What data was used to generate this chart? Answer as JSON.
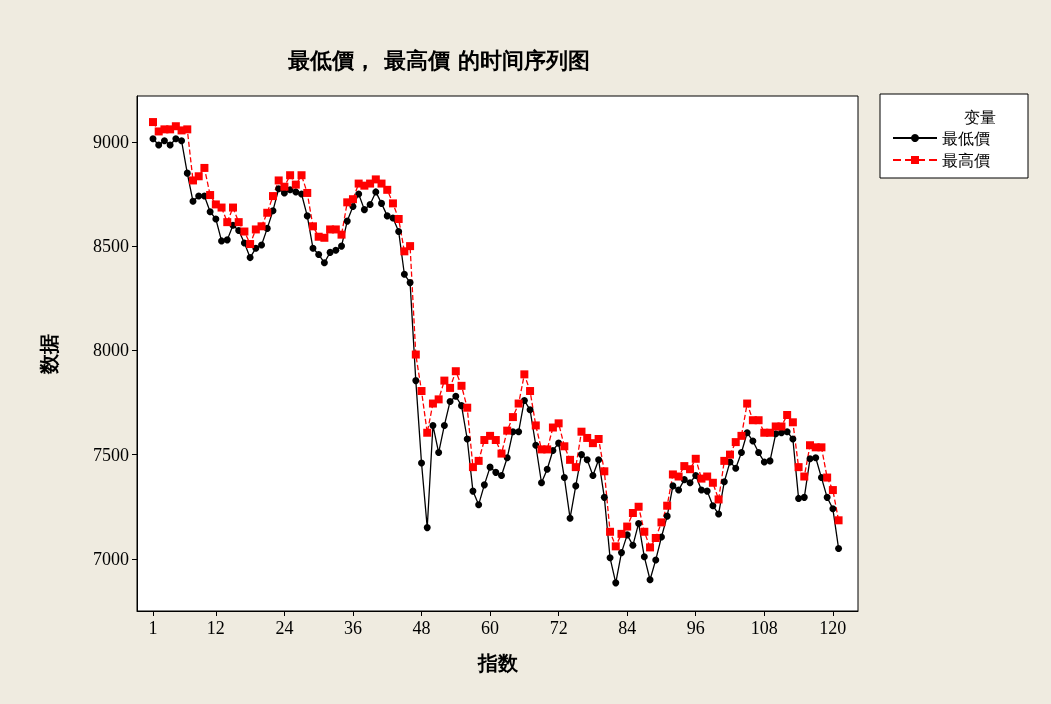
{
  "chart_data": {
    "type": "line",
    "title": "最低價， 最高價 的时间序列图",
    "xlabel": "指数",
    "ylabel": "数据",
    "legend_title": "变量",
    "legend": "right",
    "grid": false,
    "x": [
      1,
      2,
      3,
      4,
      5,
      6,
      7,
      8,
      9,
      10,
      11,
      12,
      13,
      14,
      15,
      16,
      17,
      18,
      19,
      20,
      21,
      22,
      23,
      24,
      25,
      26,
      27,
      28,
      29,
      30,
      31,
      32,
      33,
      34,
      35,
      36,
      37,
      38,
      39,
      40,
      41,
      42,
      43,
      44,
      45,
      46,
      47,
      48,
      49,
      50,
      51,
      52,
      53,
      54,
      55,
      56,
      57,
      58,
      59,
      60,
      61,
      62,
      63,
      64,
      65,
      66,
      67,
      68,
      69,
      70,
      71,
      72,
      73,
      74,
      75,
      76,
      77,
      78,
      79,
      80,
      81,
      82,
      83,
      84,
      85,
      86,
      87,
      88,
      89,
      90,
      91,
      92,
      93,
      94,
      95,
      96,
      97,
      98,
      99,
      100,
      101,
      102,
      103,
      104,
      105,
      106,
      107,
      108,
      109,
      110,
      111,
      112,
      113,
      114,
      115,
      116,
      117,
      118,
      119,
      120,
      121
    ],
    "xlim": [
      -1.8,
      124.4
    ],
    "xticks": [
      1,
      12,
      24,
      36,
      48,
      60,
      72,
      84,
      96,
      108,
      120
    ],
    "ylim": [
      6750,
      9220
    ],
    "yticks": [
      7000,
      7500,
      8000,
      8500,
      9000
    ],
    "series": [
      {
        "name": "最低價",
        "color": "#000000",
        "marker": "circle",
        "line_style": "solid",
        "values": [
          9015,
          8985,
          9005,
          8985,
          9015,
          9005,
          8850,
          8715,
          8740,
          8740,
          8665,
          8630,
          8525,
          8530,
          8600,
          8575,
          8515,
          8445,
          8490,
          8505,
          8585,
          8670,
          8775,
          8755,
          8770,
          8760,
          8750,
          8645,
          8490,
          8460,
          8420,
          8470,
          8480,
          8500,
          8620,
          8690,
          8750,
          8675,
          8700,
          8760,
          8705,
          8645,
          8635,
          8570,
          8365,
          8325,
          7855,
          7460,
          7150,
          7640,
          7510,
          7640,
          7755,
          7780,
          7735,
          7575,
          7325,
          7260,
          7355,
          7440,
          7415,
          7400,
          7485,
          7610,
          7610,
          7760,
          7715,
          7545,
          7365,
          7430,
          7520,
          7555,
          7390,
          7195,
          7350,
          7500,
          7475,
          7400,
          7475,
          7295,
          7005,
          6885,
          7030,
          7115,
          7065,
          7170,
          7010,
          6900,
          6995,
          7105,
          7205,
          7350,
          7330,
          7380,
          7365,
          7400,
          7330,
          7325,
          7255,
          7215,
          7370,
          7465,
          7435,
          7510,
          7605,
          7565,
          7510,
          7465,
          7470,
          7600,
          7605,
          7610,
          7575,
          7290,
          7295,
          7480,
          7485,
          7390,
          7295,
          7240,
          7050
        ]
      },
      {
        "name": "最高價",
        "color": "#ff0000",
        "marker": "square",
        "line_style": "dashed",
        "values": [
          9095,
          9050,
          9060,
          9060,
          9075,
          9055,
          9060,
          8815,
          8835,
          8875,
          8745,
          8700,
          8685,
          8615,
          8685,
          8615,
          8570,
          8510,
          8580,
          8595,
          8660,
          8740,
          8815,
          8785,
          8840,
          8795,
          8840,
          8755,
          8595,
          8545,
          8540,
          8580,
          8580,
          8555,
          8710,
          8725,
          8800,
          8790,
          8800,
          8820,
          8800,
          8770,
          8705,
          8630,
          8475,
          8500,
          7980,
          7805,
          7605,
          7745,
          7765,
          7855,
          7820,
          7900,
          7830,
          7725,
          7440,
          7470,
          7570,
          7590,
          7570,
          7505,
          7615,
          7680,
          7745,
          7885,
          7805,
          7640,
          7525,
          7525,
          7630,
          7650,
          7540,
          7475,
          7440,
          7610,
          7580,
          7555,
          7575,
          7420,
          7130,
          7060,
          7120,
          7155,
          7220,
          7250,
          7130,
          7055,
          7100,
          7175,
          7255,
          7405,
          7395,
          7445,
          7430,
          7480,
          7385,
          7395,
          7365,
          7285,
          7470,
          7500,
          7560,
          7590,
          7745,
          7665,
          7665,
          7605,
          7605,
          7635,
          7635,
          7690,
          7655,
          7440,
          7395,
          7545,
          7535,
          7535,
          7390,
          7330,
          7185
        ]
      }
    ]
  }
}
